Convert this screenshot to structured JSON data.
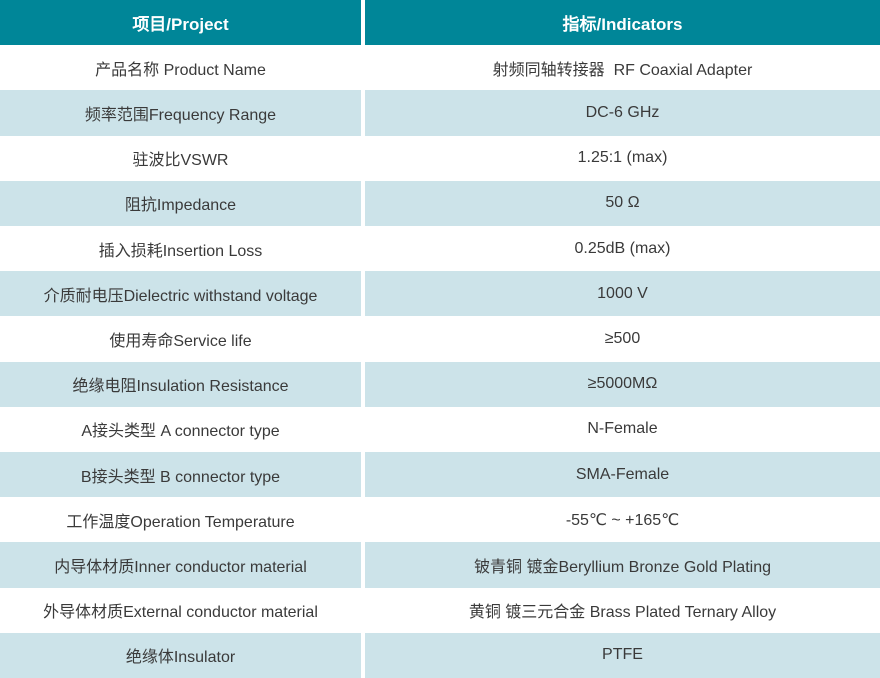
{
  "table": {
    "header": {
      "col1": "项目/Project",
      "col2": "指标/Indicators"
    },
    "rows": [
      {
        "project": "产品名称 Product Name",
        "indicator": "射频同轴转接器  RF Coaxial Adapter"
      },
      {
        "project": "频率范围Frequency Range",
        "indicator": "DC-6 GHz"
      },
      {
        "project": "驻波比VSWR",
        "indicator": "1.25:1 (max)"
      },
      {
        "project": "阻抗Impedance",
        "indicator": "50 Ω"
      },
      {
        "project": "插入损耗Insertion Loss",
        "indicator": "0.25dB (max)"
      },
      {
        "project": "介质耐电压Dielectric withstand voltage",
        "indicator": "1000 V"
      },
      {
        "project": "使用寿命Service life",
        "indicator": "≥500"
      },
      {
        "project": "绝缘电阻Insulation Resistance",
        "indicator": "≥5000MΩ"
      },
      {
        "project": "A接头类型 A connector type",
        "indicator": "N-Female"
      },
      {
        "project": "B接头类型 B connector type",
        "indicator": "SMA-Female"
      },
      {
        "project": "工作温度Operation Temperature",
        "indicator": "-55℃ ~ +165℃"
      },
      {
        "project": "内导体材质Inner conductor material",
        "indicator": "铍青铜 镀金Beryllium Bronze Gold Plating"
      },
      {
        "project": "外导体材质External conductor material",
        "indicator": "黄铜 镀三元合金 Brass Plated Ternary Alloy"
      },
      {
        "project": "绝缘体Insulator",
        "indicator": "PTFE"
      }
    ],
    "colors": {
      "header_bg": "#008698",
      "header_text": "#ffffff",
      "row_alt_bg": "#cce3e9",
      "body_text": "#3a3a3a"
    }
  }
}
